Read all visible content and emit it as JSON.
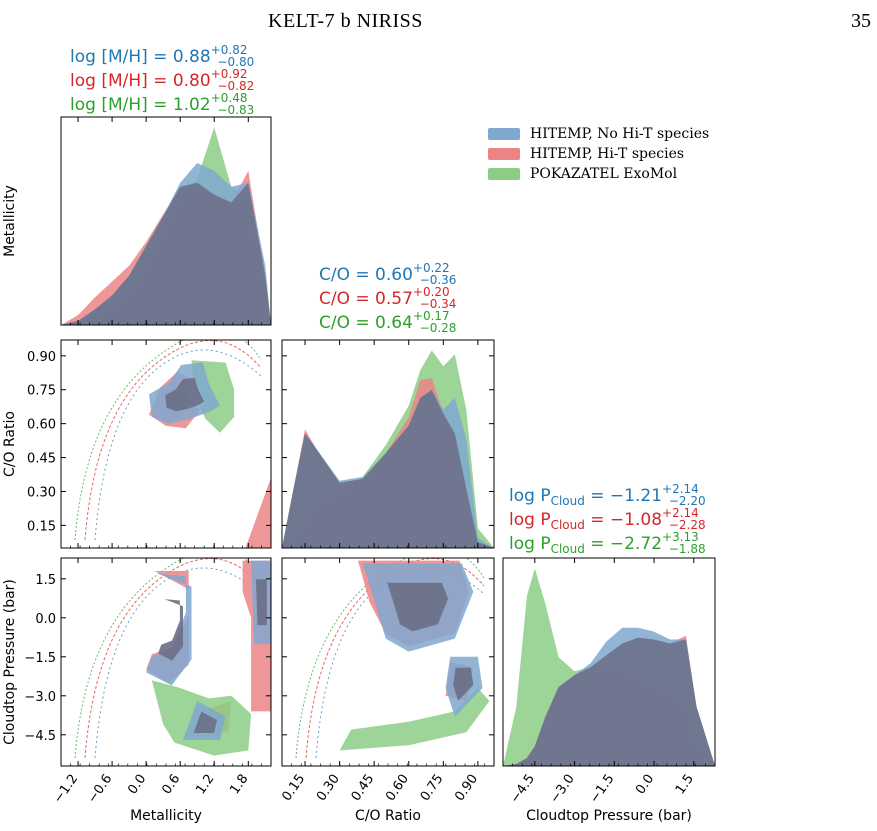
{
  "header": {
    "running_title": "KELT-7 b NIRISS",
    "page_number": "35"
  },
  "legend": {
    "entries": [
      {
        "label": "HITEMP, No Hi-T species",
        "color": "#7fa8cf"
      },
      {
        "label": "HITEMP, Hi-T species",
        "color": "#ec8486"
      },
      {
        "label": "POKAZATEL ExoMol",
        "color": "#8ccc85"
      }
    ]
  },
  "colors": {
    "blue": "#1f77b4",
    "red": "#d62728",
    "green": "#2ca02c",
    "fill_blue": "#7fa8cf",
    "fill_red": "#ec8486",
    "fill_green": "#8ccc85",
    "overlap": "#6b6f86"
  },
  "chart_data": {
    "type": "corner",
    "parameters": [
      {
        "label": "Metallicity",
        "range": [
          -1.5,
          2.2
        ],
        "ticks": [
          "−1.2",
          "−0.6",
          "0.0",
          "0.6",
          "1.2",
          "1.8"
        ],
        "tick_values": [
          -1.2,
          -0.6,
          0.0,
          0.6,
          1.2,
          1.8
        ]
      },
      {
        "label": "C/O Ratio",
        "range": [
          0.05,
          0.97
        ],
        "ticks": [
          "0.15",
          "0.30",
          "0.45",
          "0.60",
          "0.75",
          "0.90"
        ],
        "tick_values": [
          0.15,
          0.3,
          0.45,
          0.6,
          0.75,
          0.9
        ]
      },
      {
        "label": "Cloudtop Pressure (bar)",
        "range": [
          -5.7,
          2.3
        ],
        "ticks": [
          "−4.5",
          "−3.0",
          "−1.5",
          "0.0",
          "1.5"
        ],
        "tick_values": [
          -4.5,
          -3.0,
          -1.5,
          0.0,
          1.5
        ]
      }
    ],
    "axis_labels": {
      "metallicity": "Metallicity",
      "co_ratio": "C/O Ratio",
      "cloudtop": "Cloudtop Pressure (bar)"
    },
    "series": [
      {
        "name": "HITEMP, No Hi-T species",
        "color": "#1f77b4",
        "summaries": {
          "metallicity": "log [M/H] = 0.88+0.82−0.80",
          "co": "C/O = 0.60+0.22−0.36",
          "cloud": "log PCloud = −1.21+2.14−2.20"
        }
      },
      {
        "name": "HITEMP, Hi-T species",
        "color": "#d62728",
        "summaries": {
          "metallicity": "log [M/H] = 0.80+0.92−0.82",
          "co": "C/O = 0.57+0.20−0.34",
          "cloud": "log PCloud = −1.08+2.14−2.28"
        }
      },
      {
        "name": "POKAZATEL ExoMol",
        "color": "#2ca02c",
        "summaries": {
          "metallicity": "log [M/H] = 1.02+0.48−0.83",
          "co": "C/O = 0.64+0.17−0.28",
          "cloud": "log PCloud = −2.72+3.13−1.88"
        }
      }
    ],
    "annotations": {
      "metallicity": [
        {
          "prefix": "log [M/H] = ",
          "value": "0.88",
          "sup": "+0.82",
          "sub": "−0.80"
        },
        {
          "prefix": "log [M/H] = ",
          "value": "0.80",
          "sup": "+0.92",
          "sub": "−0.82"
        },
        {
          "prefix": "log [M/H] = ",
          "value": "1.02",
          "sup": "+0.48",
          "sub": "−0.83"
        }
      ],
      "co": [
        {
          "prefix": "C/O = ",
          "value": "0.60",
          "sup": "+0.22",
          "sub": "−0.36"
        },
        {
          "prefix": "C/O = ",
          "value": "0.57",
          "sup": "+0.20",
          "sub": "−0.34"
        },
        {
          "prefix": "C/O = ",
          "value": "0.64",
          "sup": "+0.17",
          "sub": "−0.28"
        }
      ],
      "cloud": [
        {
          "prefix": "log P",
          "psub": "Cloud",
          "eq": " = ",
          "value": "−1.21",
          "sup": "+2.14",
          "sub": "−2.20"
        },
        {
          "prefix": "log P",
          "psub": "Cloud",
          "eq": " = ",
          "value": "−1.08",
          "sup": "+2.14",
          "sub": "−2.28"
        },
        {
          "prefix": "log P",
          "psub": "Cloud",
          "eq": " = ",
          "value": "−2.72",
          "sup": "+3.13",
          "sub": "−1.88"
        }
      ]
    },
    "marginals": {
      "metallicity": {
        "x": [
          -1.5,
          -1.2,
          -0.9,
          -0.6,
          -0.3,
          0.0,
          0.3,
          0.6,
          0.9,
          1.2,
          1.5,
          1.8,
          2.1,
          2.2
        ],
        "blue": [
          0.0,
          0.02,
          0.08,
          0.15,
          0.25,
          0.4,
          0.55,
          0.72,
          0.82,
          0.78,
          0.7,
          0.72,
          0.3,
          0.0
        ],
        "red": [
          0.0,
          0.05,
          0.14,
          0.22,
          0.3,
          0.42,
          0.56,
          0.7,
          0.72,
          0.66,
          0.62,
          0.78,
          0.25,
          0.0
        ],
        "green": [
          0.0,
          0.01,
          0.04,
          0.09,
          0.15,
          0.3,
          0.5,
          0.66,
          0.74,
          1.0,
          0.7,
          0.65,
          0.2,
          0.0
        ]
      },
      "co": {
        "x": [
          0.05,
          0.1,
          0.15,
          0.2,
          0.3,
          0.4,
          0.5,
          0.6,
          0.65,
          0.7,
          0.75,
          0.8,
          0.85,
          0.9,
          0.97
        ],
        "blue": [
          0.0,
          0.3,
          0.58,
          0.5,
          0.34,
          0.36,
          0.48,
          0.62,
          0.76,
          0.8,
          0.7,
          0.76,
          0.55,
          0.05,
          0.0
        ],
        "red": [
          0.0,
          0.3,
          0.6,
          0.5,
          0.33,
          0.35,
          0.48,
          0.66,
          0.85,
          0.86,
          0.68,
          0.58,
          0.3,
          0.03,
          0.0
        ],
        "green": [
          0.0,
          0.05,
          0.14,
          0.22,
          0.28,
          0.36,
          0.52,
          0.72,
          0.9,
          1.0,
          0.92,
          0.98,
          0.7,
          0.1,
          0.0
        ]
      },
      "cloud": {
        "x": [
          -5.7,
          -5.2,
          -4.8,
          -4.5,
          -4.1,
          -3.6,
          -3.0,
          -2.4,
          -1.8,
          -1.2,
          -0.6,
          0.0,
          0.6,
          1.2,
          1.6,
          2.3
        ],
        "blue": [
          0.0,
          0.01,
          0.04,
          0.1,
          0.25,
          0.4,
          0.46,
          0.52,
          0.63,
          0.7,
          0.7,
          0.68,
          0.64,
          0.64,
          0.3,
          0.0
        ],
        "red": [
          0.0,
          0.01,
          0.04,
          0.1,
          0.25,
          0.4,
          0.46,
          0.5,
          0.56,
          0.62,
          0.65,
          0.64,
          0.62,
          0.66,
          0.3,
          0.0
        ],
        "green": [
          0.0,
          0.3,
          0.86,
          1.0,
          0.82,
          0.55,
          0.48,
          0.5,
          0.52,
          0.5,
          0.44,
          0.4,
          0.38,
          0.3,
          0.12,
          0.0
        ]
      }
    },
    "joint_regions": {
      "co_vs_metallicity": {
        "blue": [
          [
            [
              0.05,
              0.73
            ],
            [
              0.4,
              0.78
            ],
            [
              0.62,
              0.86
            ],
            [
              1.0,
              0.87
            ],
            [
              1.1,
              0.78
            ],
            [
              1.3,
              0.68
            ],
            [
              1.1,
              0.65
            ],
            [
              0.75,
              0.62
            ],
            [
              0.4,
              0.6
            ],
            [
              0.1,
              0.63
            ]
          ]
        ],
        "red": [
          [
            [
              0.05,
              0.64
            ],
            [
              0.25,
              0.76
            ],
            [
              0.55,
              0.83
            ],
            [
              0.8,
              0.8
            ],
            [
              0.75,
              0.72
            ],
            [
              0.95,
              0.66
            ],
            [
              0.7,
              0.58
            ],
            [
              0.35,
              0.59
            ]
          ],
          [
            [
              1.75,
              0.05
            ],
            [
              2.2,
              0.36
            ],
            [
              2.2,
              0.05
            ]
          ]
        ],
        "green": [
          [
            [
              0.8,
              0.88
            ],
            [
              1.4,
              0.87
            ],
            [
              1.55,
              0.75
            ],
            [
              1.55,
              0.63
            ],
            [
              1.3,
              0.56
            ],
            [
              1.05,
              0.62
            ],
            [
              0.85,
              0.72
            ]
          ]
        ]
      },
      "cloud_vs_metallicity": {
        "blue": [
          [
            [
              0.2,
              1.7
            ],
            [
              0.7,
              1.6
            ],
            [
              0.7,
              0.2
            ],
            [
              0.45,
              -1.2
            ],
            [
              0.1,
              -1.5
            ],
            [
              0.0,
              -2.1
            ],
            [
              0.45,
              -2.6
            ],
            [
              0.8,
              -1.6
            ],
            [
              0.8,
              1.2
            ]
          ],
          [
            [
              1.85,
              2.2
            ],
            [
              2.2,
              2.2
            ],
            [
              2.2,
              -1.0
            ],
            [
              1.9,
              -1.0
            ]
          ],
          [
            [
              0.9,
              -3.2
            ],
            [
              1.4,
              -3.8
            ],
            [
              1.3,
              -4.7
            ],
            [
              0.65,
              -4.7
            ]
          ]
        ],
        "red": [
          [
            [
              0.15,
              1.8
            ],
            [
              0.75,
              1.8
            ],
            [
              0.75,
              0.1
            ],
            [
              0.5,
              -1.1
            ],
            [
              0.1,
              -1.4
            ],
            [
              0.0,
              -2.0
            ],
            [
              0.4,
              -2.5
            ],
            [
              0.75,
              -1.8
            ],
            [
              0.75,
              1.1
            ]
          ],
          [
            [
              1.7,
              2.2
            ],
            [
              2.2,
              2.2
            ],
            [
              2.2,
              -3.6
            ],
            [
              1.85,
              -3.6
            ],
            [
              1.85,
              0.0
            ],
            [
              1.7,
              1.0
            ]
          ],
          [
            [
              1.1,
              -3.5
            ],
            [
              1.5,
              -3.2
            ],
            [
              1.45,
              -4.4
            ],
            [
              1.2,
              -4.4
            ]
          ]
        ],
        "green": [
          [
            [
              0.1,
              -2.4
            ],
            [
              0.6,
              -2.7
            ],
            [
              1.1,
              -3.1
            ],
            [
              1.5,
              -3.0
            ],
            [
              1.85,
              -3.7
            ],
            [
              1.8,
              -5.1
            ],
            [
              1.2,
              -5.3
            ],
            [
              0.5,
              -4.8
            ],
            [
              0.3,
              -4.1
            ]
          ]
        ]
      },
      "cloud_vs_co": {
        "blue": [
          [
            [
              0.4,
              2.1
            ],
            [
              0.83,
              2.1
            ],
            [
              0.88,
              1.0
            ],
            [
              0.8,
              -0.8
            ],
            [
              0.6,
              -1.3
            ],
            [
              0.5,
              -0.8
            ],
            [
              0.45,
              0.7
            ]
          ],
          [
            [
              0.78,
              -1.5
            ],
            [
              0.9,
              -1.5
            ],
            [
              0.92,
              -2.7
            ],
            [
              0.8,
              -3.8
            ],
            [
              0.76,
              -2.7
            ]
          ]
        ],
        "red": [
          [
            [
              0.38,
              2.2
            ],
            [
              0.82,
              2.2
            ],
            [
              0.86,
              1.0
            ],
            [
              0.8,
              -0.6
            ],
            [
              0.6,
              -1.1
            ],
            [
              0.5,
              -0.6
            ],
            [
              0.43,
              0.6
            ]
          ],
          [
            [
              0.78,
              -1.7
            ],
            [
              0.88,
              -1.9
            ],
            [
              0.85,
              -3.2
            ],
            [
              0.76,
              -3.0
            ]
          ]
        ],
        "green": [
          [
            [
              0.35,
              -4.3
            ],
            [
              0.6,
              -4.0
            ],
            [
              0.8,
              -3.6
            ],
            [
              0.9,
              -2.7
            ],
            [
              0.95,
              -3.2
            ],
            [
              0.85,
              -4.4
            ],
            [
              0.6,
              -4.9
            ],
            [
              0.3,
              -5.1
            ]
          ]
        ]
      }
    }
  }
}
